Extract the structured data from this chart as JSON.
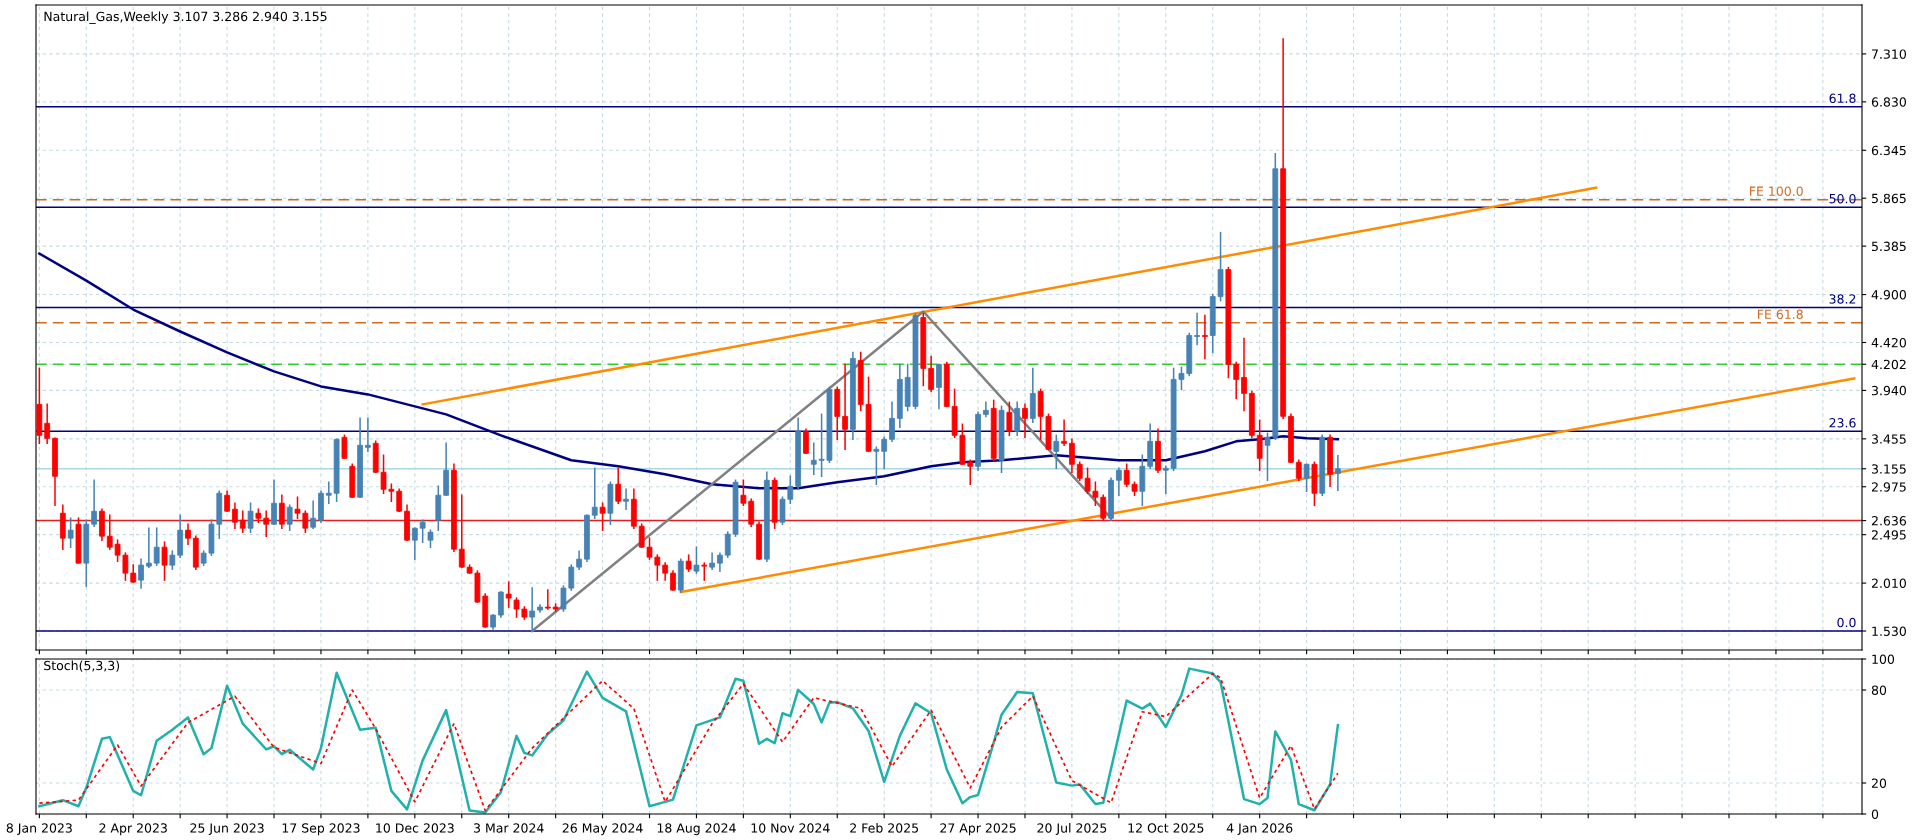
{
  "chart_data": [
    {
      "type": "candlestick",
      "title": "Natural_Gas,Weekly 3.107 3.286 2.940 3.155",
      "x": [
        "2023-01-08",
        "2023-01-15",
        "2023-01-22",
        "2023-01-29",
        "2023-02-05",
        "2023-02-12",
        "2023-02-19",
        "2023-02-26",
        "2023-03-05",
        "2023-03-12",
        "2023-03-19",
        "2023-03-26",
        "2023-04-02",
        "2023-04-09",
        "2023-04-16",
        "2023-04-23",
        "2023-04-30",
        "2023-05-07",
        "2023-05-14",
        "2023-05-21",
        "2023-05-28",
        "2023-06-04",
        "2023-06-11",
        "2023-06-18",
        "2023-06-25",
        "2023-07-02",
        "2023-07-09",
        "2023-07-16",
        "2023-07-23",
        "2023-07-30",
        "2023-08-06",
        "2023-08-13",
        "2023-08-20",
        "2023-08-27",
        "2023-09-03",
        "2023-09-10",
        "2023-09-17",
        "2023-09-24",
        "2023-10-01",
        "2023-10-08",
        "2023-10-15",
        "2023-10-22",
        "2023-10-29",
        "2023-11-05",
        "2023-11-12",
        "2023-11-19",
        "2023-11-26",
        "2023-12-03",
        "2023-12-10",
        "2023-12-17",
        "2023-12-24",
        "2023-12-31",
        "2024-01-07",
        "2024-01-14",
        "2024-01-21",
        "2024-01-28",
        "2024-02-04",
        "2024-02-11",
        "2024-02-18",
        "2024-02-25",
        "2024-03-03",
        "2024-03-10",
        "2024-03-17",
        "2024-03-24",
        "2024-03-31",
        "2024-04-07",
        "2024-04-14",
        "2024-04-21",
        "2024-04-28",
        "2024-05-05",
        "2024-05-12",
        "2024-05-19",
        "2024-05-26",
        "2024-06-02",
        "2024-06-09",
        "2024-06-16",
        "2024-06-23",
        "2024-06-30",
        "2024-07-07",
        "2024-07-14",
        "2024-07-21",
        "2024-07-28",
        "2024-08-04",
        "2024-08-11",
        "2024-08-18",
        "2024-08-25",
        "2024-09-01",
        "2024-09-08",
        "2024-09-15",
        "2024-09-22",
        "2024-09-29",
        "2024-10-06",
        "2024-10-13",
        "2024-10-20",
        "2024-10-27",
        "2024-11-03",
        "2024-11-10",
        "2024-11-17",
        "2024-11-24",
        "2024-12-01",
        "2024-12-08",
        "2024-12-15",
        "2024-12-22",
        "2024-12-29",
        "2025-01-05",
        "2025-01-12",
        "2025-01-19",
        "2025-01-26",
        "2025-02-02",
        "2025-02-09",
        "2025-02-16",
        "2025-02-23",
        "2025-03-02",
        "2025-03-09",
        "2025-03-16",
        "2025-03-23",
        "2025-03-30",
        "2025-04-06",
        "2025-04-13",
        "2025-04-20",
        "2025-04-27",
        "2025-05-04",
        "2025-05-11",
        "2025-05-18",
        "2025-05-25",
        "2025-06-01",
        "2025-06-08",
        "2025-06-15",
        "2025-06-22",
        "2025-06-29",
        "2025-07-06",
        "2025-07-13",
        "2025-07-20",
        "2025-07-27",
        "2025-08-03",
        "2025-08-10",
        "2025-08-17",
        "2025-08-24",
        "2025-08-31",
        "2025-09-07",
        "2025-09-14",
        "2025-09-21",
        "2025-09-28",
        "2025-10-05",
        "2025-10-12",
        "2025-10-19",
        "2025-10-26",
        "2025-11-02",
        "2025-11-09",
        "2025-11-16",
        "2025-11-23",
        "2025-11-30",
        "2025-12-07",
        "2025-12-14",
        "2025-12-21",
        "2025-12-28",
        "2026-01-04",
        "2026-01-11",
        "2026-01-18",
        "2026-01-25",
        "2026-02-01",
        "2026-02-08",
        "2026-02-15",
        "2026-02-22",
        "2026-03-01",
        "2026-03-08",
        "2026-03-15"
      ],
      "ohlc": [
        [
          3.8,
          4.16,
          3.41,
          3.49
        ],
        [
          3.61,
          3.8,
          3.41,
          3.46
        ],
        [
          3.46,
          3.46,
          2.79,
          3.08
        ],
        [
          2.71,
          2.79,
          2.35,
          2.46
        ],
        [
          2.46,
          2.66,
          2.37,
          2.54
        ],
        [
          2.6,
          2.66,
          2.21,
          2.21
        ],
        [
          2.21,
          2.64,
          1.98,
          2.6
        ],
        [
          2.6,
          3.04,
          2.58,
          2.73
        ],
        [
          2.73,
          2.75,
          2.44,
          2.48
        ],
        [
          2.48,
          2.69,
          2.35,
          2.37
        ],
        [
          2.4,
          2.44,
          2.23,
          2.29
        ],
        [
          2.29,
          2.31,
          2.04,
          2.11
        ],
        [
          2.11,
          2.19,
          2.02,
          2.02
        ],
        [
          2.04,
          2.25,
          1.96,
          2.19
        ],
        [
          2.18,
          2.56,
          2.17,
          2.21
        ],
        [
          2.21,
          2.56,
          2.19,
          2.37
        ],
        [
          2.37,
          2.42,
          2.04,
          2.19
        ],
        [
          2.19,
          2.33,
          2.15,
          2.29
        ],
        [
          2.29,
          2.69,
          2.27,
          2.54
        ],
        [
          2.54,
          2.6,
          2.4,
          2.46
        ],
        [
          2.46,
          2.48,
          2.15,
          2.17
        ],
        [
          2.21,
          2.33,
          2.19,
          2.31
        ],
        [
          2.31,
          2.64,
          2.29,
          2.6
        ],
        [
          2.6,
          2.93,
          2.46,
          2.91
        ],
        [
          2.89,
          2.93,
          2.73,
          2.73
        ],
        [
          2.75,
          2.81,
          2.56,
          2.62
        ],
        [
          2.64,
          2.73,
          2.52,
          2.56
        ],
        [
          2.56,
          2.81,
          2.52,
          2.73
        ],
        [
          2.71,
          2.75,
          2.62,
          2.66
        ],
        [
          2.66,
          2.73,
          2.48,
          2.6
        ],
        [
          2.6,
          3.04,
          2.6,
          2.81
        ],
        [
          2.81,
          2.89,
          2.56,
          2.6
        ],
        [
          2.6,
          2.79,
          2.54,
          2.77
        ],
        [
          2.75,
          2.87,
          2.66,
          2.71
        ],
        [
          2.71,
          2.73,
          2.52,
          2.56
        ],
        [
          2.57,
          2.83,
          2.56,
          2.66
        ],
        [
          2.64,
          2.93,
          2.62,
          2.91
        ],
        [
          2.89,
          3.02,
          2.81,
          2.91
        ],
        [
          2.91,
          3.45,
          2.83,
          3.45
        ],
        [
          3.47,
          3.49,
          3.26,
          3.26
        ],
        [
          3.18,
          3.2,
          2.87,
          2.87
        ],
        [
          2.87,
          3.66,
          2.87,
          3.39
        ],
        [
          3.37,
          3.66,
          3.33,
          3.39
        ],
        [
          3.41,
          3.43,
          3.12,
          3.12
        ],
        [
          3.12,
          3.29,
          2.91,
          2.95
        ],
        [
          2.95,
          3.0,
          2.83,
          2.93
        ],
        [
          2.93,
          2.95,
          2.73,
          2.73
        ],
        [
          2.73,
          2.79,
          2.44,
          2.44
        ],
        [
          2.44,
          2.56,
          2.25,
          2.56
        ],
        [
          2.56,
          2.64,
          2.42,
          2.62
        ],
        [
          2.44,
          2.54,
          2.37,
          2.52
        ],
        [
          2.64,
          2.98,
          2.54,
          2.89
        ],
        [
          2.89,
          3.41,
          2.89,
          3.14
        ],
        [
          3.14,
          3.2,
          2.33,
          2.35
        ],
        [
          2.35,
          2.89,
          2.17,
          2.17
        ],
        [
          2.17,
          2.19,
          2.11,
          2.11
        ],
        [
          2.11,
          2.13,
          1.82,
          1.82
        ],
        [
          1.88,
          1.9,
          1.57,
          1.57
        ],
        [
          1.57,
          1.69,
          1.55,
          1.69
        ],
        [
          1.69,
          1.92,
          1.67,
          1.92
        ],
        [
          1.9,
          2.02,
          1.77,
          1.86
        ],
        [
          1.84,
          1.86,
          1.67,
          1.75
        ],
        [
          1.75,
          1.77,
          1.65,
          1.67
        ],
        [
          1.67,
          1.96,
          1.53,
          1.73
        ],
        [
          1.74,
          1.79,
          1.72,
          1.77
        ],
        [
          1.77,
          1.94,
          1.75,
          1.76
        ],
        [
          1.77,
          1.8,
          1.73,
          1.75
        ],
        [
          1.75,
          1.98,
          1.73,
          1.96
        ],
        [
          1.96,
          2.19,
          1.94,
          2.17
        ],
        [
          2.17,
          2.33,
          2.15,
          2.25
        ],
        [
          2.25,
          2.69,
          2.23,
          2.69
        ],
        [
          2.69,
          3.16,
          2.66,
          2.77
        ],
        [
          2.77,
          2.81,
          2.54,
          2.71
        ],
        [
          2.71,
          3.02,
          2.6,
          3.0
        ],
        [
          3.0,
          3.16,
          2.81,
          2.83
        ],
        [
          2.83,
          2.95,
          2.75,
          2.85
        ],
        [
          2.85,
          2.95,
          2.56,
          2.58
        ],
        [
          2.58,
          2.6,
          2.37,
          2.37
        ],
        [
          2.37,
          2.46,
          2.25,
          2.27
        ],
        [
          2.27,
          2.29,
          2.04,
          2.19
        ],
        [
          2.19,
          2.21,
          2.04,
          2.11
        ],
        [
          2.11,
          2.13,
          1.94,
          1.94
        ],
        [
          1.94,
          2.25,
          1.92,
          2.23
        ],
        [
          2.23,
          2.29,
          2.13,
          2.15
        ],
        [
          2.13,
          2.37,
          2.11,
          2.19
        ],
        [
          2.19,
          2.21,
          2.04,
          2.18
        ],
        [
          2.17,
          2.31,
          2.15,
          2.21
        ],
        [
          2.21,
          2.31,
          2.13,
          2.29
        ],
        [
          2.29,
          2.52,
          2.27,
          2.5
        ],
        [
          2.5,
          3.04,
          2.48,
          3.02
        ],
        [
          2.89,
          3.04,
          2.79,
          2.81
        ],
        [
          2.83,
          2.85,
          2.58,
          2.6
        ],
        [
          2.6,
          2.62,
          2.25,
          2.25
        ],
        [
          2.25,
          3.12,
          2.23,
          3.04
        ],
        [
          3.04,
          3.06,
          2.56,
          2.62
        ],
        [
          2.62,
          2.87,
          2.6,
          2.85
        ],
        [
          2.85,
          3.08,
          2.81,
          2.98
        ],
        [
          2.98,
          3.66,
          2.95,
          3.53
        ],
        [
          3.53,
          3.55,
          3.31,
          3.31
        ],
        [
          3.2,
          3.41,
          3.1,
          3.24
        ],
        [
          3.24,
          3.7,
          3.08,
          3.25
        ],
        [
          3.24,
          3.97,
          3.22,
          3.95
        ],
        [
          3.95,
          3.97,
          3.45,
          3.68
        ],
        [
          3.68,
          4.2,
          3.35,
          3.55
        ],
        [
          3.55,
          4.32,
          3.45,
          4.26
        ],
        [
          4.24,
          4.32,
          3.74,
          3.8
        ],
        [
          3.8,
          4.07,
          3.33,
          3.33
        ],
        [
          3.33,
          3.37,
          3.0,
          3.35
        ],
        [
          3.33,
          3.47,
          3.16,
          3.45
        ],
        [
          3.45,
          3.82,
          3.43,
          3.66
        ],
        [
          3.66,
          4.2,
          3.57,
          4.05
        ],
        [
          3.78,
          4.2,
          3.74,
          4.07
        ],
        [
          3.78,
          4.71,
          3.76,
          4.69
        ],
        [
          4.67,
          4.71,
          3.99,
          4.16
        ],
        [
          4.16,
          4.28,
          3.93,
          3.95
        ],
        [
          3.97,
          4.2,
          3.76,
          4.2
        ],
        [
          4.2,
          4.22,
          3.78,
          3.78
        ],
        [
          3.78,
          3.95,
          3.47,
          3.49
        ],
        [
          3.49,
          3.6,
          3.2,
          3.2
        ],
        [
          3.22,
          3.24,
          3.0,
          3.18
        ],
        [
          3.18,
          3.72,
          3.14,
          3.7
        ],
        [
          3.7,
          3.82,
          3.68,
          3.74
        ],
        [
          3.76,
          3.84,
          3.24,
          3.26
        ],
        [
          3.24,
          3.78,
          3.12,
          3.74
        ],
        [
          3.72,
          3.82,
          3.49,
          3.53
        ],
        [
          3.53,
          3.82,
          3.49,
          3.76
        ],
        [
          3.76,
          3.8,
          3.47,
          3.66
        ],
        [
          3.66,
          4.16,
          3.62,
          3.91
        ],
        [
          3.93,
          3.95,
          3.45,
          3.68
        ],
        [
          3.68,
          3.7,
          3.35,
          3.35
        ],
        [
          3.33,
          3.49,
          3.16,
          3.43
        ],
        [
          3.43,
          3.64,
          3.39,
          3.41
        ],
        [
          3.41,
          3.45,
          3.12,
          3.2
        ],
        [
          3.2,
          3.22,
          3.04,
          3.06
        ],
        [
          3.06,
          3.16,
          2.91,
          2.93
        ],
        [
          2.93,
          3.02,
          2.79,
          2.87
        ],
        [
          2.87,
          2.89,
          2.64,
          2.66
        ],
        [
          2.66,
          3.06,
          2.64,
          3.04
        ],
        [
          3.04,
          3.16,
          2.89,
          3.14
        ],
        [
          3.14,
          3.2,
          2.98,
          3.0
        ],
        [
          3.0,
          3.02,
          2.89,
          2.93
        ],
        [
          2.93,
          3.29,
          2.79,
          3.18
        ],
        [
          3.18,
          3.6,
          3.16,
          3.43
        ],
        [
          3.43,
          3.55,
          3.12,
          3.14
        ],
        [
          3.14,
          3.18,
          2.91,
          3.16
        ],
        [
          3.16,
          4.16,
          3.14,
          4.05
        ],
        [
          4.05,
          4.17,
          3.95,
          4.11
        ],
        [
          4.11,
          4.51,
          4.09,
          4.49
        ],
        [
          4.48,
          4.71,
          4.4,
          4.49
        ],
        [
          4.49,
          4.69,
          4.26,
          4.48
        ],
        [
          4.49,
          4.9,
          4.32,
          4.88
        ],
        [
          4.88,
          5.52,
          4.84,
          5.15
        ],
        [
          5.15,
          5.17,
          4.07,
          4.2
        ],
        [
          4.2,
          4.22,
          3.86,
          4.05
        ],
        [
          4.07,
          4.46,
          3.74,
          3.91
        ],
        [
          3.91,
          3.93,
          3.47,
          3.49
        ],
        [
          3.49,
          3.64,
          3.14,
          3.26
        ],
        [
          3.39,
          3.51,
          3.04,
          3.47
        ],
        [
          3.47,
          6.31,
          3.45,
          6.16
        ],
        [
          6.16,
          7.46,
          3.66,
          3.68
        ],
        [
          3.68,
          3.7,
          3.22,
          3.22
        ],
        [
          3.22,
          3.24,
          3.04,
          3.06
        ],
        [
          3.06,
          3.2,
          2.93,
          3.2
        ],
        [
          3.2,
          3.22,
          2.79,
          2.91
        ],
        [
          2.91,
          3.49,
          2.89,
          3.47
        ],
        [
          3.47,
          3.49,
          2.98,
          3.1
        ],
        [
          3.107,
          3.286,
          2.94,
          3.155
        ]
      ],
      "colors": [
        "#ff0000",
        "#ff0000",
        "#ff0000",
        "#ff0000",
        "#4682b4",
        "#ff0000",
        "#4682b4",
        "#4682b4",
        "#ff0000",
        "#ff0000",
        "#ff0000",
        "#ff0000",
        "#ff0000",
        "#4682b4",
        "#4682b4",
        "#4682b4",
        "#ff0000",
        "#4682b4",
        "#4682b4",
        "#ff0000",
        "#ff0000",
        "#4682b4",
        "#4682b4",
        "#4682b4",
        "#ff0000",
        "#ff0000",
        "#ff0000",
        "#4682b4",
        "#ff0000",
        "#ff0000",
        "#4682b4",
        "#ff0000",
        "#4682b4",
        "#ff0000",
        "#ff0000",
        "#4682b4",
        "#4682b4",
        "#4682b4",
        "#4682b4",
        "#ff0000",
        "#ff0000",
        "#4682b4",
        "#4682b4",
        "#ff0000",
        "#ff0000",
        "#ff0000",
        "#ff0000",
        "#ff0000",
        "#4682b4",
        "#4682b4",
        "#4682b4",
        "#4682b4",
        "#4682b4",
        "#ff0000",
        "#ff0000",
        "#ff0000",
        "#ff0000",
        "#ff0000",
        "#4682b4",
        "#4682b4",
        "#ff0000",
        "#ff0000",
        "#ff0000",
        "#4682b4",
        "#4682b4",
        "#ff0000",
        "#ff0000",
        "#4682b4",
        "#4682b4",
        "#4682b4",
        "#4682b4",
        "#4682b4",
        "#ff0000",
        "#4682b4",
        "#ff0000",
        "#4682b4",
        "#ff0000",
        "#ff0000",
        "#ff0000",
        "#ff0000",
        "#ff0000",
        "#ff0000",
        "#4682b4",
        "#ff0000",
        "#4682b4",
        "#ff0000",
        "#4682b4",
        "#4682b4",
        "#4682b4",
        "#4682b4",
        "#ff0000",
        "#ff0000",
        "#ff0000",
        "#4682b4",
        "#ff0000",
        "#4682b4",
        "#4682b4",
        "#4682b4",
        "#ff0000",
        "#4682b4",
        "#4682b4",
        "#4682b4",
        "#ff0000",
        "#ff0000",
        "#4682b4",
        "#ff0000",
        "#ff0000",
        "#4682b4",
        "#4682b4",
        "#4682b4",
        "#4682b4",
        "#4682b4",
        "#4682b4",
        "#ff0000",
        "#ff0000",
        "#4682b4",
        "#ff0000",
        "#ff0000",
        "#ff0000",
        "#ff0000",
        "#4682b4",
        "#4682b4",
        "#ff0000",
        "#4682b4",
        "#ff0000",
        "#4682b4",
        "#ff0000",
        "#4682b4",
        "#ff0000",
        "#ff0000",
        "#4682b4",
        "#ff0000",
        "#ff0000",
        "#ff0000",
        "#ff0000",
        "#ff0000",
        "#ff0000",
        "#4682b4",
        "#4682b4",
        "#ff0000",
        "#ff0000",
        "#4682b4",
        "#4682b4",
        "#ff0000",
        "#4682b4",
        "#4682b4",
        "#4682b4",
        "#4682b4",
        "#4682b4",
        "#ff0000",
        "#4682b4",
        "#4682b4",
        "#ff0000",
        "#ff0000",
        "#ff0000",
        "#ff0000",
        "#ff0000",
        "#4682b4",
        "#4682b4",
        "#ff0000",
        "#ff0000",
        "#ff0000",
        "#4682b4",
        "#ff0000",
        "#4682b4",
        "#ff0000",
        "#4682b4"
      ],
      "series": [
        {
          "type": "line",
          "color": "#000080",
          "line_style": "solid",
          "x": [
            "2023-01-08",
            "2023-02-19",
            "2023-04-02",
            "2023-05-14",
            "2023-06-25",
            "2023-08-06",
            "2023-09-17",
            "2023-10-29",
            "2023-12-10",
            "2024-01-07",
            "2024-02-25",
            "2024-04-28",
            "2024-06-09",
            "2024-07-21",
            "2024-09-01",
            "2024-10-13",
            "2024-11-17",
            "2024-12-22",
            "2025-02-02",
            "2025-03-16",
            "2025-04-13",
            "2025-05-18",
            "2025-07-06",
            "2025-08-31",
            "2025-10-12",
            "2025-11-16",
            "2025-12-14",
            "2026-01-04",
            "2026-01-25",
            "2026-02-15",
            "2026-03-15"
          ],
          "values": [
            5.31,
            5.04,
            4.75,
            4.53,
            4.32,
            4.13,
            3.98,
            3.9,
            3.78,
            3.7,
            3.49,
            3.24,
            3.18,
            3.1,
            3.0,
            2.96,
            2.96,
            3.02,
            3.08,
            3.18,
            3.22,
            3.24,
            3.29,
            3.24,
            3.24,
            3.33,
            3.43,
            3.45,
            3.48,
            3.46,
            3.45
          ]
        },
        {
          "type": "line",
          "color": "#ff8c00",
          "line_style": "solid",
          "x": [
            "2023-12-17",
            "2026-11-01"
          ],
          "values": [
            3.8,
            5.97
          ]
        },
        {
          "type": "line",
          "color": "#ff8c00",
          "line_style": "solid",
          "x": [
            "2024-08-04",
            "2027-06-20"
          ],
          "values": [
            1.92,
            4.06
          ]
        },
        {
          "type": "line",
          "color": "#808080",
          "line_style": "solid",
          "x": [
            "2024-03-24",
            "2025-03-09",
            "2025-08-24"
          ],
          "values": [
            1.53,
            4.73,
            2.66
          ]
        }
      ],
      "ref_lines": [
        {
          "axis": "y",
          "value": 1.53,
          "color": "#000080",
          "line_style": "solid"
        },
        {
          "axis": "y",
          "value": 3.53,
          "color": "#000080",
          "line_style": "solid"
        },
        {
          "axis": "y",
          "value": 4.77,
          "color": "#000080",
          "line_style": "solid"
        },
        {
          "axis": "y",
          "value": 5.775,
          "color": "#000080",
          "line_style": "solid"
        },
        {
          "axis": "y",
          "value": 6.78,
          "color": "#000080",
          "line_style": "solid"
        },
        {
          "axis": "y",
          "value": 4.617,
          "label": "FE 61.8",
          "color": "#d2691e",
          "line_style": "dashed"
        },
        {
          "axis": "y",
          "value": 5.85,
          "label": "FE 100.0",
          "color": "#d2691e",
          "line_style": "dashed"
        },
        {
          "axis": "y",
          "value": 4.202,
          "color": "#32cd32",
          "line_style": "dashed"
        },
        {
          "axis": "y",
          "value": 2.636,
          "color": "#e02020",
          "line_style": "solid"
        },
        {
          "axis": "y",
          "value": 3.155,
          "color": "#add8e6",
          "line_style": "solid"
        }
      ],
      "annotations": [
        {
          "text": "0.0",
          "x": "2027-06-27",
          "y": 1.53
        },
        {
          "text": "23.6",
          "x": "2027-06-27",
          "y": 3.53
        },
        {
          "text": "38.2",
          "x": "2027-06-27",
          "y": 4.77
        },
        {
          "text": "50.0",
          "x": "2027-06-27",
          "y": 5.775
        },
        {
          "text": "61.8",
          "x": "2027-06-27",
          "y": 6.78
        }
      ],
      "xlim": [
        "2023-01-05",
        "2027-06-27"
      ],
      "xticks": [
        {
          "value": "2023-01-08",
          "label": null
        },
        {
          "value": "2023-02-19",
          "label": null
        },
        {
          "value": "2023-04-02",
          "label": null
        },
        {
          "value": "2023-05-14",
          "label": null
        },
        {
          "value": "2023-06-25",
          "label": null
        },
        {
          "value": "2023-08-06",
          "label": null
        },
        {
          "value": "2023-09-17",
          "label": null
        },
        {
          "value": "2023-10-29",
          "label": null
        },
        {
          "value": "2023-12-10",
          "label": null
        },
        {
          "value": "2024-01-21",
          "label": null
        },
        {
          "value": "2024-03-03",
          "label": null
        },
        {
          "value": "2024-04-14",
          "label": null
        },
        {
          "value": "2024-05-26",
          "label": null
        },
        {
          "value": "2024-07-07",
          "label": null
        },
        {
          "value": "2024-08-18",
          "label": null
        },
        {
          "value": "2024-09-29",
          "label": null
        },
        {
          "value": "2024-11-10",
          "label": null
        },
        {
          "value": "2024-12-22",
          "label": null
        },
        {
          "value": "2025-02-02",
          "label": null
        },
        {
          "value": "2025-03-16",
          "label": null
        },
        {
          "value": "2025-04-27",
          "label": null
        },
        {
          "value": "2025-06-08",
          "label": null
        },
        {
          "value": "2025-07-20",
          "label": null
        },
        {
          "value": "2025-08-31",
          "label": null
        },
        {
          "value": "2025-10-12",
          "label": null
        },
        {
          "value": "2025-11-23",
          "label": null
        },
        {
          "value": "2026-01-04",
          "label": null
        },
        {
          "value": "2026-02-15",
          "label": null
        },
        {
          "value": "2026-03-29",
          "label": null
        },
        {
          "value": "2026-05-10",
          "label": null
        },
        {
          "value": "2026-06-21",
          "label": null
        },
        {
          "value": "2026-08-02",
          "label": null
        },
        {
          "value": "2026-09-13",
          "label": null
        },
        {
          "value": "2026-10-25",
          "label": null
        },
        {
          "value": "2026-12-06",
          "label": null
        },
        {
          "value": "2027-01-17",
          "label": null
        },
        {
          "value": "2027-02-28",
          "label": null
        },
        {
          "value": "2027-04-11",
          "label": null
        },
        {
          "value": "2027-05-23",
          "label": null
        }
      ],
      "ylim": [
        1.34,
        7.8
      ],
      "yticks": [
        {
          "value": 7.31,
          "label": "7.310"
        },
        {
          "value": 6.83,
          "label": "6.830"
        },
        {
          "value": 6.345,
          "label": "6.345"
        },
        {
          "value": 5.865,
          "label": "5.865"
        },
        {
          "value": 5.385,
          "label": "5.385"
        },
        {
          "value": 4.9,
          "label": "4.900"
        },
        {
          "value": 4.42,
          "label": "4.420"
        },
        {
          "value": 4.202,
          "label": "4.202"
        },
        {
          "value": 3.94,
          "label": "3.940"
        },
        {
          "value": 3.455,
          "label": "3.455"
        },
        {
          "value": 3.155,
          "label": "3.155"
        },
        {
          "value": 2.975,
          "label": "2.975"
        },
        {
          "value": 2.636,
          "label": "2.636"
        },
        {
          "value": 2.495,
          "label": "2.495"
        },
        {
          "value": 2.01,
          "label": "2.010"
        },
        {
          "value": 1.53,
          "label": "1.530"
        }
      ],
      "grid": true,
      "tick_labels": "y"
    },
    {
      "type": "line",
      "title": "Stoch(5,3,3)",
      "series": [
        {
          "color": "#20b2aa",
          "line_style": "solid",
          "x": [
            "2023-01-08",
            "2023-01-29",
            "2023-02-12",
            "2023-02-19",
            "2023-03-05",
            "2023-03-12",
            "2023-04-02",
            "2023-04-09",
            "2023-04-23",
            "2023-05-07",
            "2023-05-21",
            "2023-06-04",
            "2023-06-11",
            "2023-06-25",
            "2023-07-09",
            "2023-07-30",
            "2023-08-06",
            "2023-08-13",
            "2023-08-20",
            "2023-09-10",
            "2023-09-17",
            "2023-10-01",
            "2023-10-22",
            "2023-11-05",
            "2023-11-19",
            "2023-12-03",
            "2023-12-17",
            "2024-01-07",
            "2024-01-28",
            "2024-02-11",
            "2024-02-25",
            "2024-03-10",
            "2024-03-17",
            "2024-03-24",
            "2024-04-07",
            "2024-04-21",
            "2024-05-12",
            "2024-05-26",
            "2024-06-16",
            "2024-07-07",
            "2024-07-21",
            "2024-07-28",
            "2024-08-18",
            "2024-09-08",
            "2024-09-22",
            "2024-09-29",
            "2024-10-13",
            "2024-10-20",
            "2024-10-27",
            "2024-11-03",
            "2024-11-10",
            "2024-11-17",
            "2024-12-01",
            "2024-12-08",
            "2024-12-15",
            "2024-12-22",
            "2025-01-05",
            "2025-01-19",
            "2025-02-02",
            "2025-02-16",
            "2025-03-02",
            "2025-03-16",
            "2025-03-30",
            "2025-04-13",
            "2025-04-20",
            "2025-04-27",
            "2025-05-11",
            "2025-05-18",
            "2025-06-01",
            "2025-06-15",
            "2025-07-06",
            "2025-07-20",
            "2025-07-27",
            "2025-08-10",
            "2025-08-17",
            "2025-09-07",
            "2025-09-21",
            "2025-09-28",
            "2025-10-12",
            "2025-10-26",
            "2025-11-02",
            "2025-11-23",
            "2025-11-30",
            "2025-12-21",
            "2026-01-04",
            "2026-01-11",
            "2026-01-18",
            "2026-02-01",
            "2026-02-08",
            "2026-02-22",
            "2026-03-08",
            "2026-03-15"
          ],
          "values": [
            5.0,
            8.9,
            5.0,
            16.9,
            48.5,
            49.6,
            14.9,
            12.1,
            47.3,
            54.4,
            62.3,
            38.6,
            42.5,
            82.8,
            58.3,
            41.7,
            43.7,
            38.6,
            41.4,
            28.7,
            42.5,
            91.1,
            54.4,
            55.6,
            14.9,
            3.0,
            34.6,
            67.0,
            2.2,
            1.0,
            14.1,
            50.4,
            39.4,
            37.8,
            51.6,
            60.3,
            91.9,
            74.9,
            66.2,
            5.0,
            7.8,
            9.3,
            57.2,
            62.3,
            87.2,
            86.0,
            45.3,
            48.5,
            45.7,
            65.0,
            63.1,
            80.1,
            71.0,
            59.1,
            71.8,
            72.2,
            68.2,
            53.6,
            20.8,
            50.4,
            71.4,
            65.0,
            28.7,
            7.0,
            10.9,
            12.3,
            46.1,
            64.0,
            78.7,
            77.9,
            20.3,
            18.3,
            19.1,
            6.4,
            7.2,
            73.2,
            68.0,
            71.2,
            56.1,
            76.7,
            93.8,
            90.6,
            85.1,
            9.6,
            6.4,
            10.3,
            53.3,
            35.0,
            6.4,
            2.4,
            19.1,
            57.3
          ]
        },
        {
          "color": "#ff0000",
          "line_style": "dotted",
          "x": [
            "2023-01-08",
            "2023-02-12",
            "2023-03-19",
            "2023-04-09",
            "2023-05-21",
            "2023-07-02",
            "2023-08-06",
            "2023-09-17",
            "2023-10-15",
            "2023-11-05",
            "2023-12-10",
            "2024-01-14",
            "2024-02-11",
            "2024-03-24",
            "2024-05-26",
            "2024-06-23",
            "2024-07-21",
            "2024-09-01",
            "2024-09-29",
            "2024-11-03",
            "2024-12-01",
            "2025-01-12",
            "2025-02-09",
            "2025-03-16",
            "2025-04-20",
            "2025-05-18",
            "2025-06-15",
            "2025-07-20",
            "2025-08-24",
            "2025-09-21",
            "2025-10-12",
            "2025-11-23",
            "2025-11-30",
            "2026-01-04",
            "2026-02-01",
            "2026-02-22",
            "2026-03-15"
          ],
          "values": [
            7,
            9,
            44.5,
            18,
            59,
            76,
            43,
            32.6,
            80,
            55,
            7.8,
            58.3,
            2.2,
            42.5,
            86,
            68,
            7.8,
            58.3,
            84,
            46.5,
            75,
            68.2,
            30.7,
            67,
            16.8,
            56,
            76,
            21.5,
            7.2,
            66,
            62.8,
            90.6,
            87.9,
            10.3,
            44.1,
            3.2,
            26.3
          ]
        }
      ],
      "xlim": [
        "2023-01-05",
        "2027-06-27"
      ],
      "xticks": [
        {
          "value": "2023-01-08",
          "label": "8 Jan 2023"
        },
        {
          "value": "2023-02-19",
          "label": null
        },
        {
          "value": "2023-04-02",
          "label": "2 Apr 2023"
        },
        {
          "value": "2023-05-14",
          "label": null
        },
        {
          "value": "2023-06-25",
          "label": "25 Jun 2023"
        },
        {
          "value": "2023-08-06",
          "label": null
        },
        {
          "value": "2023-09-17",
          "label": "17 Sep 2023"
        },
        {
          "value": "2023-10-29",
          "label": null
        },
        {
          "value": "2023-12-10",
          "label": "10 Dec 2023"
        },
        {
          "value": "2024-01-21",
          "label": null
        },
        {
          "value": "2024-03-03",
          "label": "3 Mar 2024"
        },
        {
          "value": "2024-04-14",
          "label": null
        },
        {
          "value": "2024-05-26",
          "label": "26 May 2024"
        },
        {
          "value": "2024-07-07",
          "label": null
        },
        {
          "value": "2024-08-18",
          "label": "18 Aug 2024"
        },
        {
          "value": "2024-09-29",
          "label": null
        },
        {
          "value": "2024-11-10",
          "label": "10 Nov 2024"
        },
        {
          "value": "2024-12-22",
          "label": null
        },
        {
          "value": "2025-02-02",
          "label": "2 Feb 2025"
        },
        {
          "value": "2025-03-16",
          "label": null
        },
        {
          "value": "2025-04-27",
          "label": "27 Apr 2025"
        },
        {
          "value": "2025-06-08",
          "label": null
        },
        {
          "value": "2025-07-20",
          "label": "20 Jul 2025"
        },
        {
          "value": "2025-08-31",
          "label": null
        },
        {
          "value": "2025-10-12",
          "label": "12 Oct 2025"
        },
        {
          "value": "2025-11-23",
          "label": null
        },
        {
          "value": "2026-01-04",
          "label": "4 Jan 2026"
        },
        {
          "value": "2026-02-15",
          "label": null
        },
        {
          "value": "2026-03-29",
          "label": null
        },
        {
          "value": "2026-05-10",
          "label": null
        },
        {
          "value": "2026-06-21",
          "label": null
        },
        {
          "value": "2026-08-02",
          "label": null
        },
        {
          "value": "2026-09-13",
          "label": null
        },
        {
          "value": "2026-10-25",
          "label": null
        },
        {
          "value": "2026-12-06",
          "label": null
        },
        {
          "value": "2027-01-17",
          "label": null
        },
        {
          "value": "2027-02-28",
          "label": null
        },
        {
          "value": "2027-04-11",
          "label": null
        },
        {
          "value": "2027-05-23",
          "label": null
        }
      ],
      "ylim": [
        0,
        100
      ],
      "yticks": [
        0,
        20,
        80,
        100
      ],
      "grid": true
    }
  ]
}
